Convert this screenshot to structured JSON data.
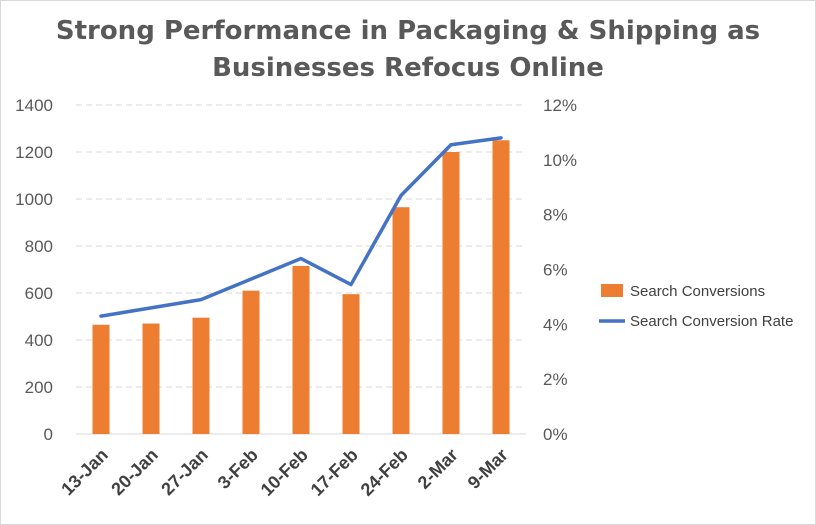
{
  "chart_data": {
    "type": "bar",
    "title_lines": [
      "Strong Performance in Packaging & Shipping as",
      "Businesses Refocus Online"
    ],
    "categories": [
      "13-Jan",
      "20-Jan",
      "27-Jan",
      "3-Feb",
      "10-Feb",
      "17-Feb",
      "24-Feb",
      "2-Mar",
      "9-Mar"
    ],
    "series": [
      {
        "name": "Search Conversions",
        "type": "bar",
        "axis": "left",
        "color": "#ED7D31",
        "values": [
          465,
          470,
          495,
          610,
          715,
          595,
          965,
          1200,
          1250
        ]
      },
      {
        "name": "Search Conversion Rate",
        "type": "line",
        "axis": "right",
        "color": "#4472C4",
        "values": [
          4.3,
          4.6,
          4.9,
          5.65,
          6.4,
          5.45,
          8.7,
          10.55,
          10.8
        ]
      }
    ],
    "left_axis": {
      "min": 0,
      "max": 1400,
      "step": 200,
      "tick_labels": [
        "0",
        "200",
        "400",
        "600",
        "800",
        "1000",
        "1200",
        "1400"
      ]
    },
    "right_axis": {
      "min": 0,
      "max": 12,
      "step": 2,
      "tick_labels": [
        "0%",
        "2%",
        "4%",
        "6%",
        "8%",
        "10%",
        "12%"
      ]
    },
    "grid": "horizontal-dashed",
    "legend_position": "right",
    "legend": [
      "Search Conversions",
      "Search Conversion Rate"
    ]
  }
}
